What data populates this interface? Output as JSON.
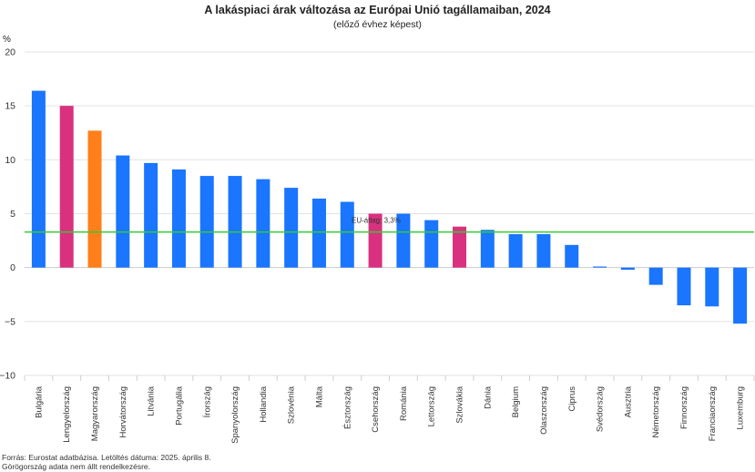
{
  "header": {
    "title": "A lakáspiaci árak változása az Európai Unió tagállamaiban, 2024",
    "subtitle": "(előző évhez képest)",
    "unit": "%"
  },
  "footer": {
    "source": "Forrás: Eurostat adatbázisa. Letöltés dátuma: 2025. április 8.",
    "note": "Görögország adata nem állt rendelkezésre."
  },
  "colors": {
    "default": "#1a75ff",
    "highlight_pink": "#d9317f",
    "highlight_orange": "#ff7f1a",
    "average_line": "#33cc33",
    "grid": "#e3e3e3"
  },
  "chart_data": {
    "type": "bar",
    "title": "A lakáspiaci árak változása az Európai Unió tagállamaiban, 2024",
    "subtitle": "(előző évhez képest)",
    "ylabel": "%",
    "ylim": [
      -10,
      20
    ],
    "yticks": [
      20,
      15,
      10,
      5,
      0,
      -5,
      -10
    ],
    "grid": true,
    "categories": [
      "Bulgária",
      "Lengyelország",
      "Magyarország",
      "Horvátország",
      "Litvánia",
      "Portugália",
      "Írország",
      "Spanyolország",
      "Hollandia",
      "Szlovénia",
      "Málta",
      "Észtország",
      "Csehország",
      "Románia",
      "Lettország",
      "Szlovákia",
      "Dánia",
      "Belgium",
      "Olaszország",
      "Ciprus",
      "Svédország",
      "Ausztria",
      "Németország",
      "Finnország",
      "Franciaország",
      "Luxemburg"
    ],
    "values": [
      16.4,
      15.0,
      12.7,
      10.4,
      9.7,
      9.1,
      8.5,
      8.5,
      8.2,
      7.4,
      6.4,
      6.1,
      5.0,
      5.0,
      4.4,
      3.8,
      3.5,
      3.1,
      3.1,
      2.1,
      0.1,
      -0.2,
      -1.6,
      -3.5,
      -3.6,
      -5.2
    ],
    "bar_colors": [
      "default",
      "highlight_pink",
      "highlight_orange",
      "default",
      "default",
      "default",
      "default",
      "default",
      "default",
      "default",
      "default",
      "default",
      "highlight_pink",
      "default",
      "default",
      "highlight_pink",
      "default",
      "default",
      "default",
      "default",
      "default",
      "default",
      "default",
      "default",
      "default",
      "default"
    ],
    "reference_line": {
      "value": 3.3,
      "label": "EU-átlag: 3,3%"
    }
  }
}
